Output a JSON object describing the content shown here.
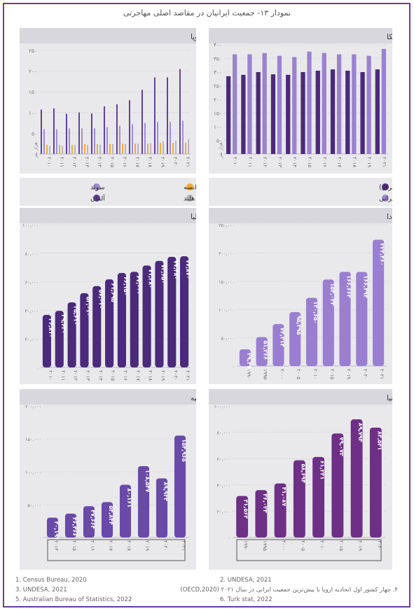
{
  "title": "نمودار ۱۳- جمعیت ایرانیان در مقاصد اصلی مهاجرتی",
  "colors": {
    "dark_purple": "#4b2a7b",
    "light_purple": "#9b82cf",
    "mid_purple": "#5a3290",
    "canada": "#9a7fd0",
    "turkey": "#6a4aa8",
    "uk": "#6e2f86",
    "sweden": "#9f8ad1",
    "germany": "#5e3a98",
    "france": "#f4a830",
    "netherlands": "#b6b6b6",
    "panel_bg": "#e9e9ec",
    "header_bg": "#d8d8dc",
    "frame": "#6a3d9a"
  },
  "footnotes": {
    "f1": "1. Census Bureau, 2020",
    "f2": "2. UNDESA, 2021",
    "f3": "3. UNDESA, 2021",
    "f4": "۴. چهار کشور اول اتحادیه اروپا با بیش‌ترین جمعیت ایرانی در سال ۲۰۲۱ (OECD,2020)",
    "f5": "5. Australian Bureau of Statistics, 2022",
    "f6": "6. Turk stat, 2022"
  },
  "chart_data": [
    {
      "id": "usa",
      "type": "bar",
      "title": "آمریکا",
      "title_sup": "۱",
      "ylabel": "هزار نفر",
      "ylim": [
        0,
        400
      ],
      "yticks": [
        0,
        50,
        100,
        150,
        200,
        250,
        300,
        350,
        400
      ],
      "ytick_labels": [
        "۰",
        "۵۰",
        "۱۰۰",
        "۱۵۰",
        "۲۰۰",
        "۲۵۰",
        "۳۰۰",
        "۳۵۰",
        "۴۰۰"
      ],
      "categories": [
        "۲۰۱۰",
        "۲۰۱۱",
        "۲۰۱۲",
        "۲۰۱۳",
        "۲۰۱۴",
        "۲۰۱۵",
        "۲۰۱۶",
        "۲۰۱۷",
        "۲۰۱۸",
        "۲۰۱۹",
        "۲۰۲۱"
      ],
      "series": [
        {
          "name": "جمعیت ایرانیان براساس محل تولد(ایران)",
          "values": [
            285,
            290,
            300,
            292,
            290,
            300,
            305,
            310,
            305,
            300,
            310
          ]
        },
        {
          "name": "جمعیت ایرانیان در آمریکا بر اساس اصالت ایرانی",
          "values": [
            365,
            365,
            370,
            360,
            355,
            375,
            370,
            365,
            365,
            360,
            385
          ]
        }
      ]
    },
    {
      "id": "eu",
      "type": "bar",
      "title": "چهار کشور اول اتحادیه اروپا",
      "title_sup": "۴",
      "ylabel": "هزار نفر",
      "ylim": [
        0,
        250
      ],
      "yticks": [
        0,
        50,
        100,
        150,
        200,
        250
      ],
      "ytick_labels": [
        "۰",
        "۵۰",
        "۱۰۰",
        "۱۵۰",
        "۲۰۰",
        "۲۵۰"
      ],
      "categories": [
        "۲۰۱۰",
        "۲۰۱۱",
        "۲۰۱۲",
        "۲۰۱۳",
        "۲۰۱۴",
        "۲۰۱۵",
        "۲۰۱۶",
        "۲۰۱۷",
        "۲۰۱۸",
        "۲۰۱۹",
        "۲۰۲۰",
        "۲۰۲۱"
      ],
      "series": [
        {
          "name": "آلمان",
          "values": [
            107,
            110,
            97,
            100,
            98,
            115,
            120,
            130,
            155,
            185,
            185,
            205
          ]
        },
        {
          "name": "سوئد",
          "values": [
            60,
            60,
            62,
            62,
            62,
            65,
            68,
            72,
            75,
            78,
            78,
            80
          ]
        },
        {
          "name": "فرانسه",
          "values": [
            22,
            22,
            22,
            24,
            24,
            24,
            25,
            25,
            25,
            27,
            27,
            27
          ]
        },
        {
          "name": "هلند",
          "values": [
            20,
            20,
            22,
            22,
            22,
            24,
            24,
            25,
            26,
            30,
            32,
            36
          ]
        }
      ]
    },
    {
      "id": "canada",
      "type": "bar",
      "title": "کانادا",
      "title_sup": "۲",
      "ylim": [
        0,
        250000
      ],
      "yticks": [
        0,
        50000,
        100000,
        150000,
        200000,
        250000
      ],
      "ytick_labels": [
        "۰",
        "۵۰,۰۰۰",
        "۱۰۰,۰۰۰",
        "۱۵۰,۰۰۰",
        "۲۰۰,۰۰۰",
        "۲۵۰,۰۰۰"
      ],
      "categories": [
        "۱۹۹۰",
        "۱۹۹۵",
        "۲۰۰۰",
        "۲۰۰۵",
        "۲۰۱۰",
        "۲۰۱۵",
        "۲۰۱۹",
        "۲۰۲۰",
        "۲۰۲۱"
      ],
      "values": [
        29476,
        51266,
        74214,
        95395,
        120650,
        153023,
        166663,
        166394,
        223460
      ],
      "labels": [
        "۲۹,۴۷۶",
        "۵۱,۲۶۶",
        "۷۴,۲۱۴",
        "۹۵,۳۹۵",
        "۱۲۰,۶۵۰",
        "۱۵۳,۰۲۳",
        "۱۶۶,۶۶۳",
        "۱۶۶,۳۹۴",
        "۲۲۳,۴۶۰"
      ]
    },
    {
      "id": "australia",
      "type": "bar",
      "title": "استرالیا",
      "title_sup": "۵",
      "ylim": [
        0,
        100000
      ],
      "yticks": [
        0,
        20000,
        40000,
        60000,
        80000,
        100000
      ],
      "ytick_labels": [
        "۰",
        "۲۰,۰۰۰",
        "۴۰,۰۰۰",
        "۶۰,۰۰۰",
        "۸۰,۰۰۰",
        "۱۰۰,۰۰۰"
      ],
      "categories": [
        "۲۰۱۰",
        "۲۰۱۱",
        "۲۰۱۲",
        "۲۰۱۳",
        "۲۰۱۴",
        "۲۰۱۵",
        "۲۰۱۶",
        "۲۰۱۷",
        "۲۰۱۸",
        "۲۰۱۹",
        "۲۰۲۰",
        "۲۰۲۱"
      ],
      "values": [
        36810,
        39640,
        45610,
        52010,
        57010,
        61695,
        66150,
        67000,
        71380,
        74650,
        77480,
        77870
      ],
      "labels": [
        "۳۶,۸۱۰",
        "۳۹,۶۴۰",
        "۴۵,۶۱۰",
        "۵۲,۰۱۰",
        "۵۷,۰۱۰",
        "۶۱,۶۹۵",
        "۶۶,۱۵۰",
        "۶۷,۰۰۰",
        "۷۱,۳۸۰",
        "۷۴,۶۵۰",
        "۷۷,۴۸۰",
        "۷۷,۸۷۰"
      ]
    },
    {
      "id": "uk",
      "type": "bar",
      "title": "بریتانیا",
      "title_sup": "۲",
      "ylim": [
        0,
        100000
      ],
      "yticks": [
        0,
        20000,
        40000,
        60000,
        80000,
        100000
      ],
      "ytick_labels": [
        "۰",
        "۲۰,۰۰۰",
        "۴۰,۰۰۰",
        "۶۰,۰۰۰",
        "۸۰,۰۰۰",
        "۱۰۰,۰۰۰"
      ],
      "categories": [
        "۱۹۹۰",
        "۱۹۹۵",
        "۲۰۰۰",
        "۲۰۰۵",
        "۲۰۱۰",
        "۲۰۱۵",
        "۲۰۱۹",
        "۲۰۲۰"
      ],
      "values": [
        31563,
        36023,
        41087,
        58694,
        61231,
        79072,
        89794,
        83531
      ],
      "labels": [
        "۳۱,۵۶۳",
        "۳۶,۰۲۳",
        "۴۱,۰۸۷",
        "۵۸,۶۹۴",
        "۶۱,۲۳۱",
        "۷۹,۰۷۲",
        "۸۹,۷۹۴",
        "۸۳,۵۳۱"
      ]
    },
    {
      "id": "turkey",
      "type": "bar",
      "title": "ترکیه",
      "title_sup": "۶",
      "ylim": [
        0,
        200000
      ],
      "yticks": [
        0,
        50000,
        100000,
        150000,
        200000
      ],
      "ytick_labels": [
        "۰",
        "۵۰,۰۰۰",
        "۱۰۰,۰۰۰",
        "۱۵۰,۰۰۰",
        "۲۰۰,۰۰۰"
      ],
      "categories": [
        "۲۰۱۴",
        "۲۰۱۵",
        "۲۰۱۶",
        "۲۰۱۷",
        "۲۰۱۸",
        "۲۰۱۹",
        "۲۰۲۰",
        "۲۰۲۱"
      ],
      "values": [
        30192,
        36366,
        47664,
        53844,
        80161,
        108547,
        89943,
        154965
      ],
      "labels": [
        "۳۰,۱۹۲",
        "۳۶,۳۶۶",
        "۴۷,۶۶۴",
        "۵۳,۸۴۴",
        "۸۰,۱۶۱",
        "۱۰۸,۵۴۷",
        "۸۹,۹۴۳",
        "۱۵۴,۹۶۵"
      ]
    }
  ]
}
